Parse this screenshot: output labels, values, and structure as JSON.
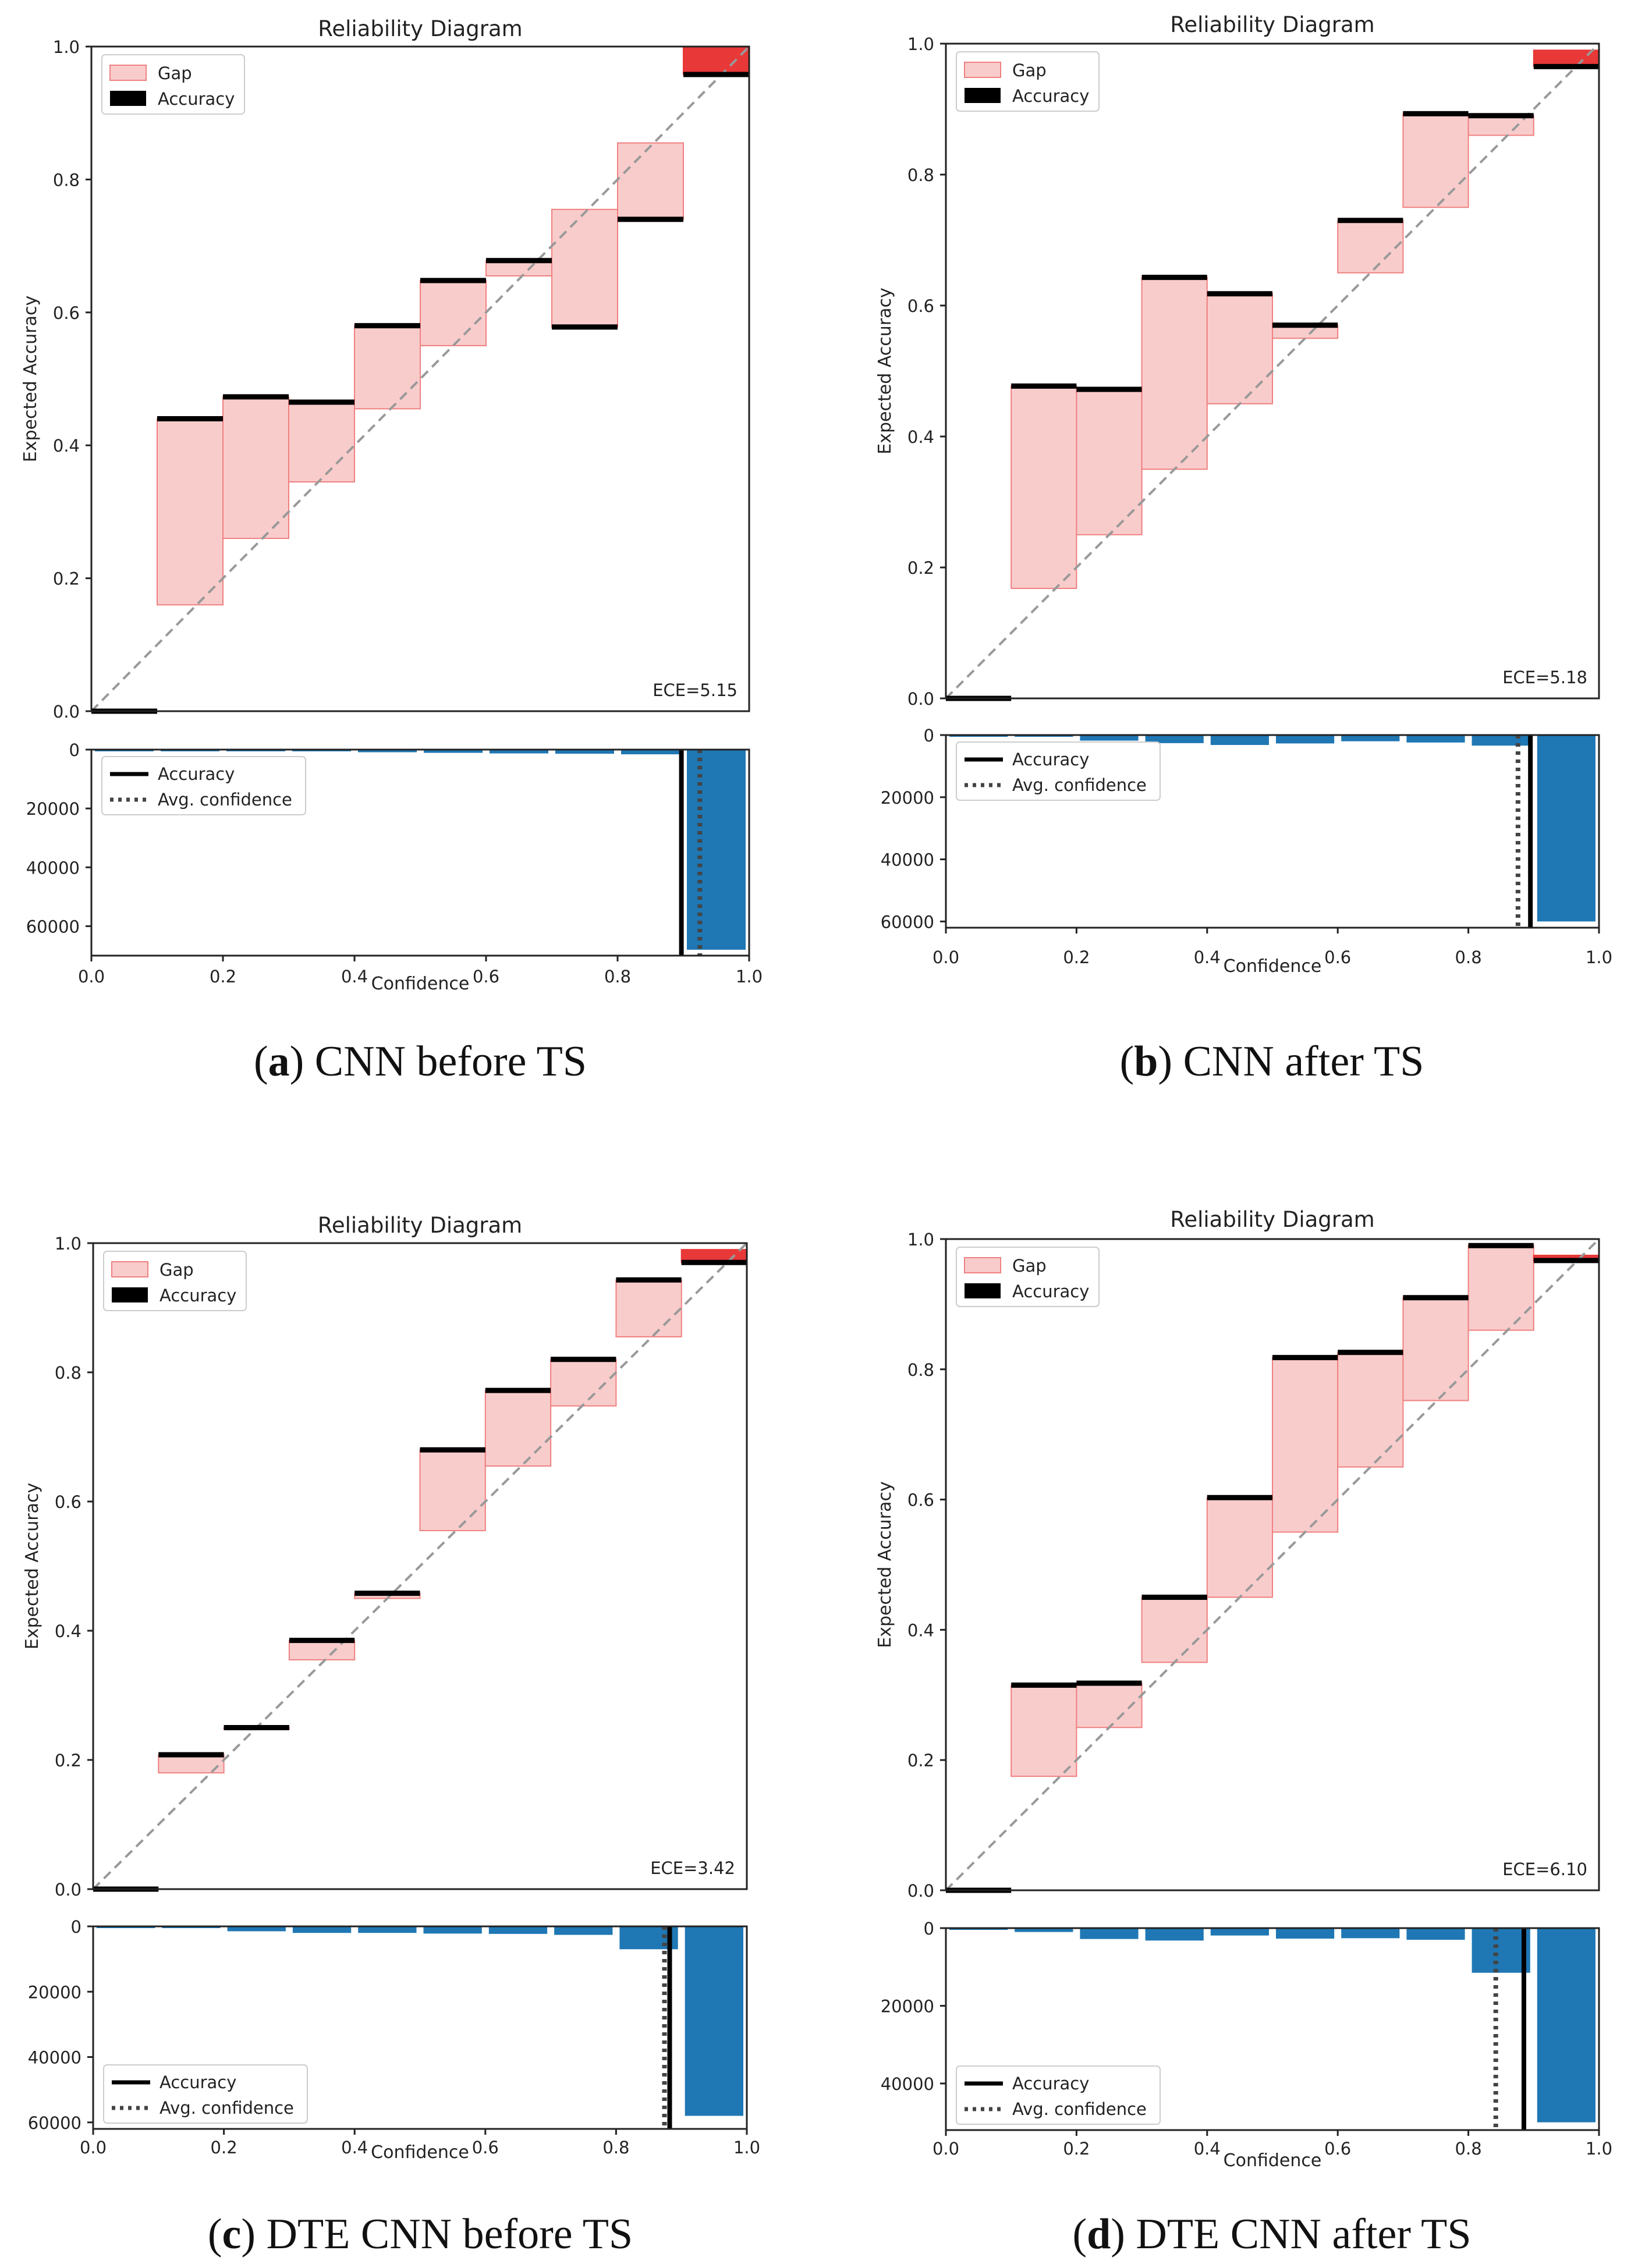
{
  "colors": {
    "gap_fill": "#f9cccc",
    "gap_stroke": "#f08080",
    "gap_dark": "#f4aaaa",
    "gap_last": "#e83838",
    "accuracy": "#000000",
    "hist_bar": "#1f77b4",
    "diag": "#999999"
  },
  "chart_data": [
    {
      "type": "bar",
      "panel": "a",
      "caption_letter": "a",
      "caption_text": "CNN before TS",
      "title": "Reliability Diagram",
      "ylabel": "Expected Accuracy",
      "xlabel": "Confidence",
      "ylim": [
        0,
        1
      ],
      "xlim": [
        0,
        1
      ],
      "y_ticks": [
        "0.0",
        "0.2",
        "0.4",
        "0.6",
        "0.8",
        "1.0"
      ],
      "x_ticks": [
        "0.0",
        "0.2",
        "0.4",
        "0.6",
        "0.8",
        "1.0"
      ],
      "bins": [
        0.0,
        0.1,
        0.2,
        0.3,
        0.4,
        0.5,
        0.6,
        0.7,
        0.8,
        0.9
      ],
      "accuracy": [
        0.0,
        0.44,
        0.473,
        0.465,
        0.58,
        0.648,
        0.678,
        0.578,
        0.74,
        0.958
      ],
      "avg_confidence": [
        0.0,
        0.16,
        0.26,
        0.345,
        0.455,
        0.55,
        0.655,
        0.755,
        0.855,
        1.0
      ],
      "legend": {
        "gap": "Gap",
        "accuracy": "Accuracy"
      },
      "ece": "ECE=5.15",
      "hist": {
        "ylim": [
          0,
          70000
        ],
        "y_ticks": [
          "0",
          "20000",
          "40000",
          "60000"
        ],
        "counts": [
          150,
          200,
          400,
          600,
          900,
          1100,
          1300,
          1400,
          1600,
          68000
        ],
        "accuracy_line": 0.897,
        "avg_conf_line": 0.925,
        "legend": {
          "accuracy": "Accuracy",
          "avg_conf": "Avg. confidence"
        }
      }
    },
    {
      "type": "bar",
      "panel": "b",
      "caption_letter": "b",
      "caption_text": "CNN after TS",
      "title": "Reliability Diagram",
      "ylabel": "Expected Accuracy",
      "xlabel": "Confidence",
      "ylim": [
        0,
        1
      ],
      "xlim": [
        0,
        1
      ],
      "y_ticks": [
        "0.0",
        "0.2",
        "0.4",
        "0.6",
        "0.8",
        "1.0"
      ],
      "x_ticks": [
        "0.0",
        "0.2",
        "0.4",
        "0.6",
        "0.8",
        "1.0"
      ],
      "bins": [
        0.0,
        0.1,
        0.2,
        0.3,
        0.4,
        0.5,
        0.6,
        0.7,
        0.8,
        0.9
      ],
      "accuracy": [
        0.0,
        0.477,
        0.472,
        0.643,
        0.618,
        0.57,
        0.73,
        0.893,
        0.89,
        0.965
      ],
      "avg_confidence": [
        0.0,
        0.168,
        0.25,
        0.35,
        0.45,
        0.55,
        0.65,
        0.75,
        0.86,
        0.99
      ],
      "legend": {
        "gap": "Gap",
        "accuracy": "Accuracy"
      },
      "ece": "ECE=5.18",
      "hist": {
        "ylim": [
          0,
          62000
        ],
        "y_ticks": [
          "0",
          "20000",
          "40000",
          "60000"
        ],
        "counts": [
          100,
          250,
          1800,
          2600,
          3200,
          2700,
          2000,
          2400,
          3400,
          60000
        ],
        "accuracy_line": 0.895,
        "avg_conf_line": 0.876,
        "legend": {
          "accuracy": "Accuracy",
          "avg_conf": "Avg. confidence"
        }
      }
    },
    {
      "type": "bar",
      "panel": "c",
      "caption_letter": "c",
      "caption_text": "DTE CNN before TS",
      "title": "Reliability Diagram",
      "ylabel": "Expected Accuracy",
      "xlabel": "Confidence",
      "ylim": [
        0,
        1
      ],
      "xlim": [
        0,
        1
      ],
      "y_ticks": [
        "0.0",
        "0.2",
        "0.4",
        "0.6",
        "0.8",
        "1.0"
      ],
      "x_ticks": [
        "0.0",
        "0.2",
        "0.4",
        "0.6",
        "0.8",
        "1.0"
      ],
      "bins": [
        0.0,
        0.1,
        0.2,
        0.3,
        0.4,
        0.5,
        0.6,
        0.7,
        0.8,
        0.9
      ],
      "accuracy": [
        0.0,
        0.208,
        0.25,
        0.385,
        0.458,
        0.68,
        0.772,
        0.82,
        0.943,
        0.97
      ],
      "avg_confidence": [
        0.0,
        0.18,
        0.25,
        0.355,
        0.45,
        0.555,
        0.655,
        0.748,
        0.855,
        0.99
      ],
      "legend": {
        "gap": "Gap",
        "accuracy": "Accuracy"
      },
      "ece": "ECE=3.42",
      "hist": {
        "ylim": [
          0,
          62000
        ],
        "y_ticks": [
          "0",
          "20000",
          "40000",
          "60000"
        ],
        "counts": [
          100,
          150,
          1500,
          2000,
          2000,
          2200,
          2300,
          2600,
          7000,
          58000
        ],
        "accuracy_line": 0.882,
        "avg_conf_line": 0.874,
        "legend": {
          "accuracy": "Accuracy",
          "avg_conf": "Avg. confidence"
        }
      }
    },
    {
      "type": "bar",
      "panel": "d",
      "caption_letter": "d",
      "caption_text": "DTE CNN after TS",
      "title": "Reliability Diagram",
      "ylabel": "Expected Accuracy",
      "xlabel": "Confidence",
      "ylim": [
        0,
        1
      ],
      "xlim": [
        0,
        1
      ],
      "y_ticks": [
        "0.0",
        "0.2",
        "0.4",
        "0.6",
        "0.8",
        "1.0"
      ],
      "x_ticks": [
        "0.0",
        "0.2",
        "0.4",
        "0.6",
        "0.8",
        "1.0"
      ],
      "bins": [
        0.0,
        0.1,
        0.2,
        0.3,
        0.4,
        0.5,
        0.6,
        0.7,
        0.8,
        0.9
      ],
      "accuracy": [
        0.0,
        0.315,
        0.318,
        0.45,
        0.603,
        0.818,
        0.826,
        0.91,
        0.99,
        0.967
      ],
      "avg_confidence": [
        0.0,
        0.175,
        0.25,
        0.35,
        0.45,
        0.55,
        0.65,
        0.752,
        0.86,
        0.975
      ],
      "legend": {
        "gap": "Gap",
        "accuracy": "Accuracy"
      },
      "ece": "ECE=6.10",
      "hist": {
        "ylim": [
          0,
          52000
        ],
        "y_ticks": [
          "0",
          "20000",
          "40000"
        ],
        "counts": [
          100,
          1000,
          2800,
          3200,
          1900,
          2700,
          2600,
          3000,
          11500,
          50000
        ],
        "accuracy_line": 0.885,
        "avg_conf_line": 0.842,
        "legend": {
          "accuracy": "Accuracy",
          "avg_conf": "Avg. confidence"
        }
      }
    }
  ]
}
